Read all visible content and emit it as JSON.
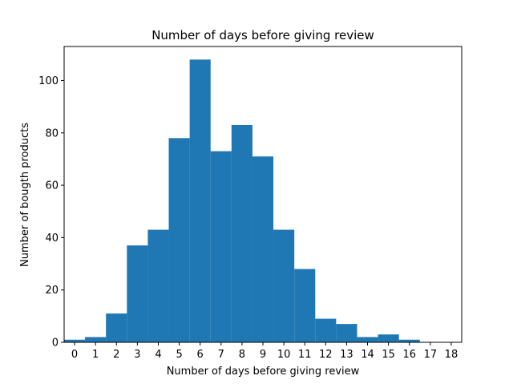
{
  "chart_data": {
    "type": "bar",
    "title": "Number of days before giving review",
    "xlabel": "Number of days before giving review",
    "ylabel": "Number of bougth products",
    "categories": [
      "0",
      "1",
      "2",
      "3",
      "4",
      "5",
      "6",
      "7",
      "8",
      "9",
      "10",
      "11",
      "12",
      "13",
      "14",
      "15",
      "16",
      "17",
      "18"
    ],
    "values": [
      1,
      2,
      11,
      37,
      43,
      78,
      108,
      73,
      83,
      71,
      43,
      28,
      9,
      7,
      2,
      3,
      1,
      0,
      0
    ],
    "xlim": [
      -0.5,
      18.5
    ],
    "ylim": [
      0,
      113
    ],
    "yticks": [
      0,
      20,
      40,
      60,
      80,
      100
    ],
    "xticks": [
      0,
      1,
      2,
      3,
      4,
      5,
      6,
      7,
      8,
      9,
      10,
      11,
      12,
      13,
      14,
      15,
      16,
      17,
      18
    ],
    "bar_color": "#1f77b4",
    "grid": false,
    "legend": "none"
  }
}
